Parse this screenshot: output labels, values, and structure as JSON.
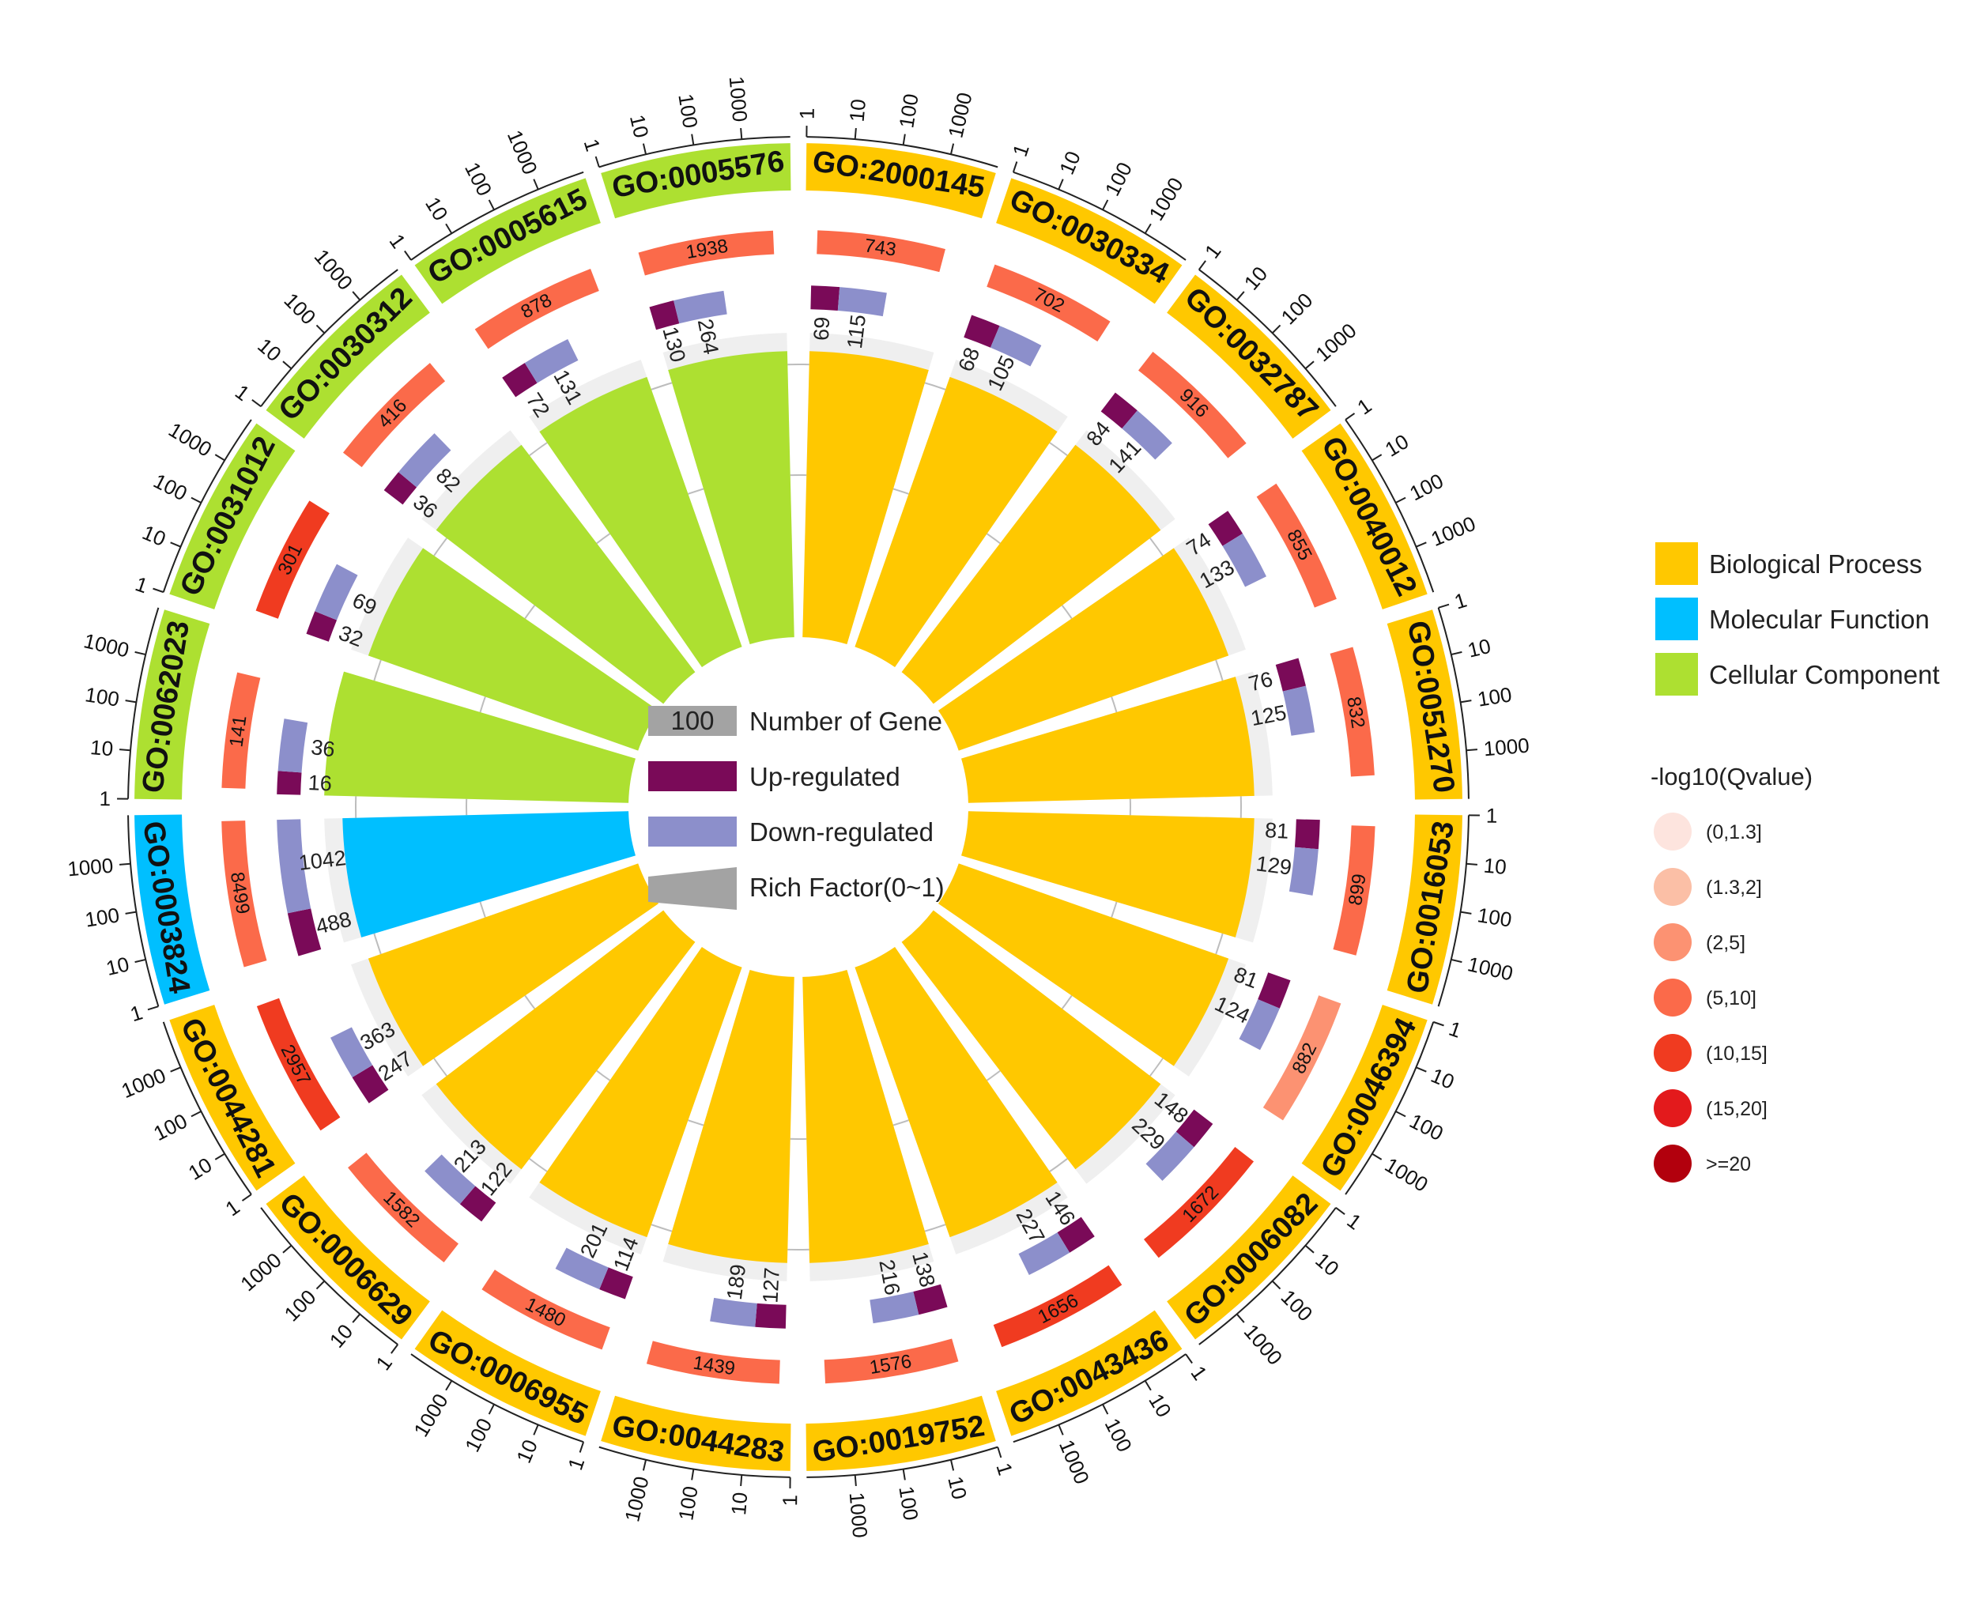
{
  "chart_data": {
    "type": "circular-go-enrichment",
    "categories": [
      {
        "id": "GO:2000145",
        "class": "bp",
        "background": 743,
        "up": 69,
        "down": 115,
        "rich": 0.94,
        "q_bin": 3
      },
      {
        "id": "GO:0030334",
        "class": "bp",
        "background": 702,
        "up": 68,
        "down": 105,
        "rich": 0.94,
        "q_bin": 3
      },
      {
        "id": "GO:0032787",
        "class": "bp",
        "background": 916,
        "up": 84,
        "down": 141,
        "rich": 0.94,
        "q_bin": 3
      },
      {
        "id": "GO:0040012",
        "class": "bp",
        "background": 855,
        "up": 74,
        "down": 133,
        "rich": 0.94,
        "q_bin": 3
      },
      {
        "id": "GO:0051270",
        "class": "bp",
        "background": 832,
        "up": 76,
        "down": 125,
        "rich": 0.94,
        "q_bin": 3
      },
      {
        "id": "GO:0016053",
        "class": "bp",
        "background": 899,
        "up": 81,
        "down": 129,
        "rich": 0.94,
        "q_bin": 3
      },
      {
        "id": "GO:0046394",
        "class": "bp",
        "background": 882,
        "up": 81,
        "down": 124,
        "rich": 0.94,
        "q_bin": 2
      },
      {
        "id": "GO:0006082",
        "class": "bp",
        "background": 1672,
        "up": 148,
        "down": 229,
        "rich": 0.94,
        "q_bin": 4
      },
      {
        "id": "GO:0043436",
        "class": "bp",
        "background": 1656,
        "up": 146,
        "down": 227,
        "rich": 0.94,
        "q_bin": 4
      },
      {
        "id": "GO:0019752",
        "class": "bp",
        "background": 1576,
        "up": 138,
        "down": 216,
        "rich": 0.94,
        "q_bin": 3
      },
      {
        "id": "GO:0044283",
        "class": "bp",
        "background": 1439,
        "up": 127,
        "down": 189,
        "rich": 0.94,
        "q_bin": 3
      },
      {
        "id": "GO:0006955",
        "class": "bp",
        "background": 1480,
        "up": 114,
        "down": 201,
        "rich": 0.94,
        "q_bin": 3
      },
      {
        "id": "GO:0006629",
        "class": "bp",
        "background": 1582,
        "up": 122,
        "down": 213,
        "rich": 0.94,
        "q_bin": 3
      },
      {
        "id": "GO:0044281",
        "class": "bp",
        "background": 2957,
        "up": 247,
        "down": 363,
        "rich": 0.94,
        "q_bin": 4
      },
      {
        "id": "GO:0003824",
        "class": "mf",
        "background": 8499,
        "up": 488,
        "down": 1042,
        "rich": 0.94,
        "q_bin": 3
      },
      {
        "id": "GO:0062023",
        "class": "cc",
        "background": 141,
        "up": 16,
        "down": 36,
        "rich": 1.0,
        "q_bin": 3
      },
      {
        "id": "GO:0031012",
        "class": "cc",
        "background": 301,
        "up": 32,
        "down": 69,
        "rich": 0.94,
        "q_bin": 4
      },
      {
        "id": "GO:0030312",
        "class": "cc",
        "background": 416,
        "up": 36,
        "down": 82,
        "rich": 0.94,
        "q_bin": 3
      },
      {
        "id": "GO:0005615",
        "class": "cc",
        "background": 878,
        "up": 72,
        "down": 131,
        "rich": 0.94,
        "q_bin": 3
      },
      {
        "id": "GO:0005576",
        "class": "cc",
        "background": 1938,
        "up": 130,
        "down": 264,
        "rich": 0.94,
        "q_bin": 3
      }
    ],
    "outer_ticks": [
      "1",
      "10",
      "100",
      "1000"
    ],
    "classes": {
      "bp": {
        "label": "Biological Process",
        "color": "#FFC800"
      },
      "mf": {
        "label": "Molecular Function",
        "color": "#00BFFF"
      },
      "cc": {
        "label": "Cellular Component",
        "color": "#ADE031"
      }
    },
    "center_legend": {
      "gene_swatch_text": "100",
      "number_of_gene": "Number of Gene",
      "up": "Up-regulated",
      "down": "Down-regulated",
      "rich": "Rich Factor(0~1)"
    },
    "qvalue_legend": {
      "title": "-log10(Qvalue)",
      "bins": [
        {
          "label": "(0,1.3]",
          "color": "#FDE4DE"
        },
        {
          "label": "(1.3,2]",
          "color": "#FBBFA6"
        },
        {
          "label": "(2,5]",
          "color": "#FC9272"
        },
        {
          "label": "(5,10]",
          "color": "#FB6A4A"
        },
        {
          "label": "(10,15]",
          "color": "#F03B20"
        },
        {
          "label": "(15,20]",
          "color": "#E31A1C"
        },
        {
          "label": ">=20",
          "color": "#B2000D"
        }
      ]
    },
    "colors": {
      "up": "#7A0A58",
      "down": "#8C8FCB",
      "inner_background": "#EEEEEE",
      "grid": "#BDBDBD",
      "tick_line": "#222222"
    }
  }
}
